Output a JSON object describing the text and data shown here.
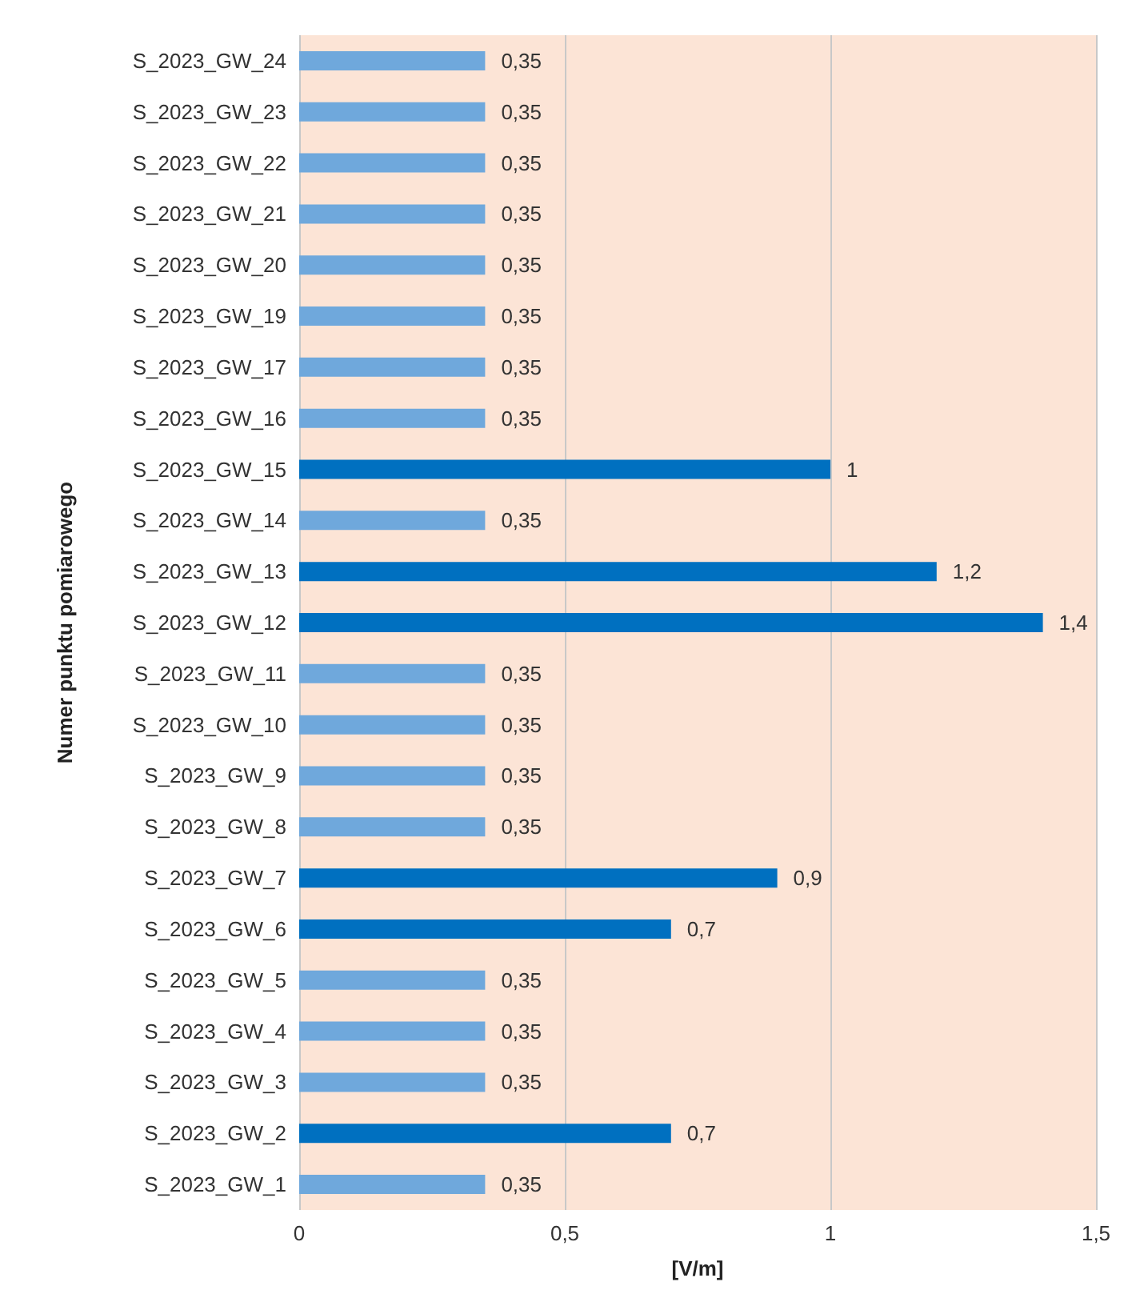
{
  "chart_data": {
    "type": "bar",
    "orientation": "horizontal",
    "ylabel": "Numer punktu pomiarowego",
    "xlabel": "[V/m]",
    "categories": [
      "S_2023_GW_24",
      "S_2023_GW_23",
      "S_2023_GW_22",
      "S_2023_GW_21",
      "S_2023_GW_20",
      "S_2023_GW_19",
      "S_2023_GW_17",
      "S_2023_GW_16",
      "S_2023_GW_15",
      "S_2023_GW_14",
      "S_2023_GW_13",
      "S_2023_GW_12",
      "S_2023_GW_11",
      "S_2023_GW_10",
      "S_2023_GW_9",
      "S_2023_GW_8",
      "S_2023_GW_7",
      "S_2023_GW_6",
      "S_2023_GW_5",
      "S_2023_GW_4",
      "S_2023_GW_3",
      "S_2023_GW_2",
      "S_2023_GW_1"
    ],
    "values": [
      0.35,
      0.35,
      0.35,
      0.35,
      0.35,
      0.35,
      0.35,
      0.35,
      1,
      0.35,
      1.2,
      1.4,
      0.35,
      0.35,
      0.35,
      0.35,
      0.9,
      0.7,
      0.35,
      0.35,
      0.35,
      0.7,
      0.35
    ],
    "value_labels": [
      "0,35",
      "0,35",
      "0,35",
      "0,35",
      "0,35",
      "0,35",
      "0,35",
      "0,35",
      "1",
      "0,35",
      "1,2",
      "1,4",
      "0,35",
      "0,35",
      "0,35",
      "0,35",
      "0,9",
      "0,7",
      "0,35",
      "0,35",
      "0,35",
      "0,7",
      "0,35"
    ],
    "colors": [
      "#6fa8dc",
      "#6fa8dc",
      "#6fa8dc",
      "#6fa8dc",
      "#6fa8dc",
      "#6fa8dc",
      "#6fa8dc",
      "#6fa8dc",
      "#0070c0",
      "#6fa8dc",
      "#0070c0",
      "#0070c0",
      "#6fa8dc",
      "#6fa8dc",
      "#6fa8dc",
      "#6fa8dc",
      "#0070c0",
      "#0070c0",
      "#6fa8dc",
      "#6fa8dc",
      "#6fa8dc",
      "#0070c0",
      "#6fa8dc"
    ],
    "xlim": [
      0,
      1.5
    ],
    "xticks": [
      0,
      {
        "value": 0.5,
        "label": "0,5"
      },
      1,
      {
        "value": 1.5,
        "label": "1,5"
      }
    ],
    "grid": "x"
  }
}
